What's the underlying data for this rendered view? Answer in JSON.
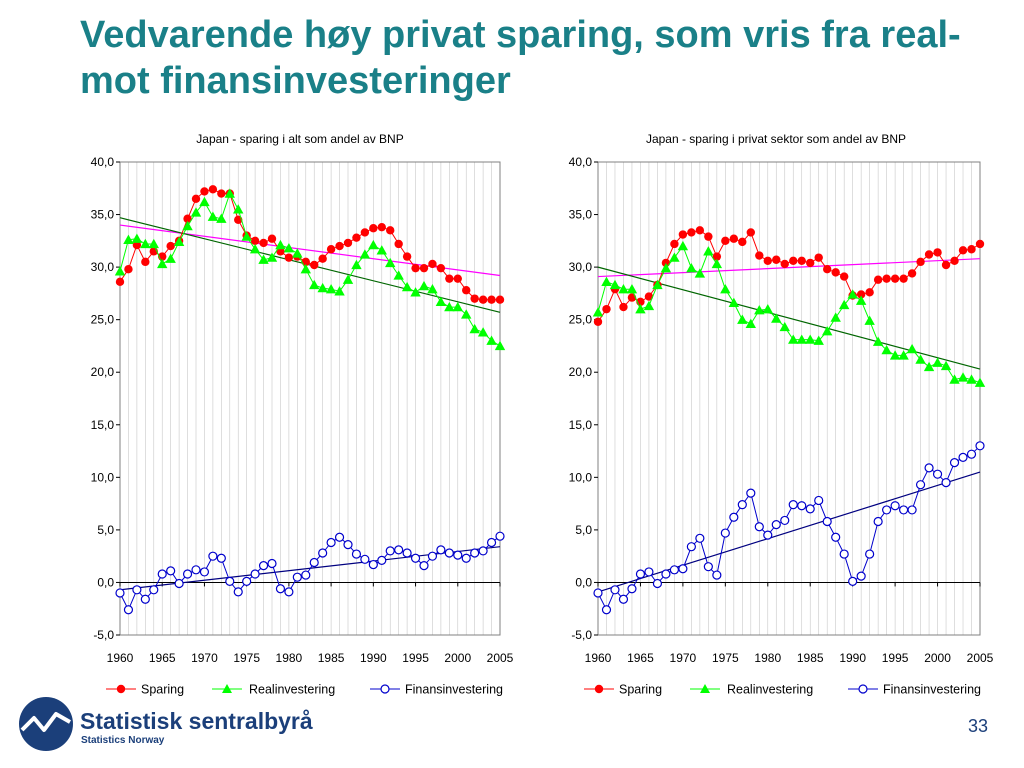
{
  "slide": {
    "title": "Vedvarende høy privat sparing, som vris fra real- mot finansinvesteringer",
    "page_number": "33",
    "logo_name": "Statistisk sentralbyrå",
    "logo_sub": "Statistics Norway"
  },
  "colors": {
    "title": "#1a8088",
    "sparing": "#ff0000",
    "real": "#00ff00",
    "fin": "#0000cc",
    "trend_sparing": "#ff00ff",
    "trend_real": "#006600",
    "trend_fin": "#000080"
  },
  "chart_data": [
    {
      "type": "line",
      "title": "Japan - sparing i alt som andel av BNP",
      "xlim": [
        1960,
        2005
      ],
      "ylim": [
        -5,
        40
      ],
      "xticks": [
        "1960",
        "1965",
        "1970",
        "1975",
        "1980",
        "1985",
        "1990",
        "1995",
        "2000",
        "2005"
      ],
      "yticks": [
        "-5,0",
        "0,0",
        "5,0",
        "10,0",
        "15,0",
        "20,0",
        "25,0",
        "30,0",
        "35,0",
        "40,0"
      ],
      "x": [
        1960,
        1961,
        1962,
        1963,
        1964,
        1965,
        1966,
        1967,
        1968,
        1969,
        1970,
        1971,
        1972,
        1973,
        1974,
        1975,
        1976,
        1977,
        1978,
        1979,
        1980,
        1981,
        1982,
        1983,
        1984,
        1985,
        1986,
        1987,
        1988,
        1989,
        1990,
        1991,
        1992,
        1993,
        1994,
        1995,
        1996,
        1997,
        1998,
        1999,
        2000,
        2001,
        2002,
        2003,
        2004,
        2005
      ],
      "series": [
        {
          "name": "Sparing",
          "marker": "circle",
          "values": [
            28.6,
            29.8,
            32.1,
            30.5,
            31.5,
            31.0,
            32.0,
            32.5,
            34.6,
            36.5,
            37.2,
            37.4,
            37.0,
            37.0,
            34.5,
            33.0,
            32.5,
            32.3,
            32.7,
            31.5,
            30.9,
            31.0,
            30.5,
            30.2,
            30.8,
            31.7,
            32.0,
            32.3,
            32.8,
            33.3,
            33.7,
            33.8,
            33.5,
            32.2,
            31.0,
            29.9,
            29.9,
            30.3,
            29.9,
            28.9,
            28.9,
            27.8,
            27.0,
            26.9,
            26.9,
            26.9
          ]
        },
        {
          "name": "Realinvestering",
          "marker": "triangle",
          "values": [
            29.6,
            32.6,
            32.7,
            32.2,
            32.2,
            30.3,
            30.8,
            32.4,
            33.9,
            35.2,
            36.2,
            34.8,
            34.6,
            37.0,
            35.5,
            32.9,
            31.7,
            30.7,
            30.9,
            32.1,
            31.8,
            31.3,
            29.8,
            28.3,
            28.0,
            27.9,
            27.7,
            28.8,
            30.2,
            31.2,
            32.1,
            31.6,
            30.4,
            29.2,
            28.1,
            27.6,
            28.2,
            27.9,
            26.7,
            26.2,
            26.2,
            25.5,
            24.1,
            23.8,
            23.0,
            22.5
          ]
        },
        {
          "name": "Finansinvestering",
          "marker": "open-circle",
          "values": [
            -1.0,
            -2.6,
            -0.7,
            -1.6,
            -0.7,
            0.8,
            1.1,
            -0.1,
            0.8,
            1.2,
            1.0,
            2.5,
            2.3,
            0.1,
            -0.9,
            0.1,
            0.8,
            1.6,
            1.8,
            -0.6,
            -0.9,
            0.5,
            0.7,
            1.9,
            2.8,
            3.8,
            4.3,
            3.6,
            2.7,
            2.2,
            1.7,
            2.1,
            3.0,
            3.1,
            2.8,
            2.3,
            1.6,
            2.5,
            3.1,
            2.8,
            2.6,
            2.3,
            2.8,
            3.0,
            3.8,
            4.4
          ]
        }
      ],
      "trend_lines": [
        {
          "series": "Sparing",
          "start": [
            1960,
            34.0
          ],
          "end": [
            2005,
            29.2
          ]
        },
        {
          "series": "Realinvestering",
          "start": [
            1960,
            34.7
          ],
          "end": [
            2005,
            25.7
          ]
        },
        {
          "series": "Finansinvestering",
          "start": [
            1960,
            -0.7
          ],
          "end": [
            2005,
            3.4
          ]
        }
      ],
      "legend": [
        "Sparing",
        "Realinvestering",
        "Finansinvestering"
      ],
      "legend_position": "bottom",
      "grid": "vertical"
    },
    {
      "type": "line",
      "title": "Japan - sparing i privat sektor som andel av BNP",
      "xlim": [
        1960,
        2005
      ],
      "ylim": [
        -5,
        40
      ],
      "xticks": [
        "1960",
        "1965",
        "1970",
        "1975",
        "1980",
        "1985",
        "1990",
        "1995",
        "2000",
        "2005"
      ],
      "yticks": [
        "-5,0",
        "0,0",
        "5,0",
        "10,0",
        "15,0",
        "20,0",
        "25,0",
        "30,0",
        "35,0",
        "40,0"
      ],
      "x": [
        1960,
        1961,
        1962,
        1963,
        1964,
        1965,
        1966,
        1967,
        1968,
        1969,
        1970,
        1971,
        1972,
        1973,
        1974,
        1975,
        1976,
        1977,
        1978,
        1979,
        1980,
        1981,
        1982,
        1983,
        1984,
        1985,
        1986,
        1987,
        1988,
        1989,
        1990,
        1991,
        1992,
        1993,
        1994,
        1995,
        1996,
        1997,
        1998,
        1999,
        2000,
        2001,
        2002,
        2003,
        2004,
        2005
      ],
      "series": [
        {
          "name": "Sparing",
          "marker": "circle",
          "values": [
            24.8,
            26.0,
            27.9,
            26.2,
            27.1,
            26.7,
            27.2,
            28.3,
            30.4,
            32.2,
            33.1,
            33.3,
            33.5,
            32.9,
            31.0,
            32.5,
            32.7,
            32.4,
            33.3,
            31.1,
            30.6,
            30.7,
            30.3,
            30.6,
            30.6,
            30.4,
            30.9,
            29.8,
            29.5,
            29.1,
            27.3,
            27.4,
            27.6,
            28.8,
            28.9,
            28.9,
            28.9,
            29.4,
            30.5,
            31.2,
            31.4,
            30.2,
            30.6,
            31.6,
            31.7,
            32.2
          ]
        },
        {
          "name": "Realinvestering",
          "marker": "triangle",
          "values": [
            25.7,
            28.6,
            28.3,
            27.9,
            27.9,
            26.0,
            26.3,
            28.3,
            29.9,
            30.9,
            32.0,
            29.9,
            29.4,
            31.5,
            30.3,
            27.9,
            26.6,
            25.0,
            24.6,
            25.9,
            26.0,
            25.1,
            24.3,
            23.1,
            23.1,
            23.1,
            23.0,
            23.9,
            25.2,
            26.4,
            27.4,
            26.8,
            24.9,
            22.9,
            22.1,
            21.6,
            21.6,
            22.2,
            21.2,
            20.5,
            20.9,
            20.6,
            19.3,
            19.5,
            19.3,
            19.0
          ]
        },
        {
          "name": "Finansinvestering",
          "marker": "open-circle",
          "values": [
            -1.0,
            -2.6,
            -0.7,
            -1.6,
            -0.6,
            0.8,
            1.0,
            -0.1,
            0.8,
            1.2,
            1.3,
            3.4,
            4.2,
            1.5,
            0.7,
            4.7,
            6.2,
            7.4,
            8.5,
            5.3,
            4.5,
            5.5,
            5.9,
            7.4,
            7.3,
            7.0,
            7.8,
            5.8,
            4.3,
            2.7,
            0.1,
            0.6,
            2.7,
            5.8,
            6.9,
            7.3,
            6.9,
            6.9,
            9.3,
            10.9,
            10.3,
            9.5,
            11.4,
            11.9,
            12.2,
            13.0
          ]
        }
      ],
      "trend_lines": [
        {
          "series": "Sparing",
          "start": [
            1960,
            29.1
          ],
          "end": [
            2005,
            30.8
          ]
        },
        {
          "series": "Realinvestering",
          "start": [
            1960,
            30.0
          ],
          "end": [
            2005,
            20.3
          ]
        },
        {
          "series": "Finansinvestering",
          "start": [
            1960,
            -0.9
          ],
          "end": [
            2005,
            10.5
          ]
        }
      ],
      "legend": [
        "Sparing",
        "Realinvestering",
        "Finansinvestering"
      ],
      "legend_position": "bottom",
      "grid": "vertical"
    }
  ]
}
